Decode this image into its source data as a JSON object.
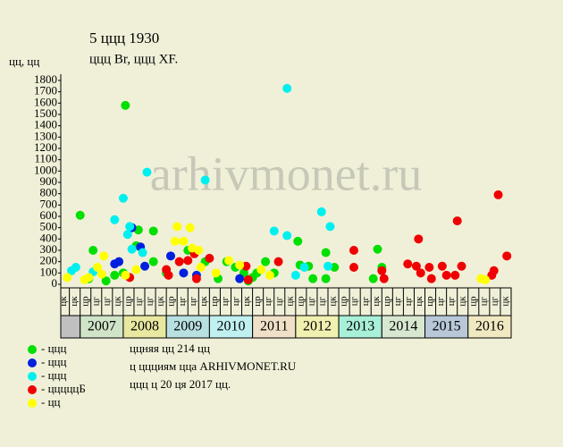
{
  "chart_data": {
    "type": "scatter",
    "title": "5 ццц 1930",
    "subtitle": "ццц Br, ццц XF.",
    "ylabel": "цц, цц",
    "watermark": "arhivmonet.ru",
    "notes": [
      "ццняя цц 214 цц",
      "ц ццциям цца ARHIVMONET.RU",
      "ццц ц 20 ця 2017 цц."
    ],
    "xlim": [
      2006.55,
      2017.0
    ],
    "ylim": [
      0,
      1800
    ],
    "yticks": [
      0,
      100,
      200,
      300,
      400,
      500,
      600,
      700,
      800,
      900,
      1000,
      1100,
      1200,
      1300,
      1400,
      1500,
      1600,
      1700,
      1800
    ],
    "xticks": [
      {
        "value": 2006.625,
        "label": "цк"
      },
      {
        "value": 2006.875,
        "label": "цк"
      },
      {
        "value": 2007.125,
        "label": "цр"
      },
      {
        "value": 2007.375,
        "label": "цг"
      },
      {
        "value": 2007.625,
        "label": "цг"
      },
      {
        "value": 2007.875,
        "label": "цк"
      },
      {
        "value": 2008.125,
        "label": "цр"
      },
      {
        "value": 2008.375,
        "label": "цг"
      },
      {
        "value": 2008.625,
        "label": "цг"
      },
      {
        "value": 2008.875,
        "label": "цк"
      },
      {
        "value": 2009.125,
        "label": "цр"
      },
      {
        "value": 2009.375,
        "label": "цг"
      },
      {
        "value": 2009.625,
        "label": "цг"
      },
      {
        "value": 2009.875,
        "label": "цк"
      },
      {
        "value": 2010.125,
        "label": "цр"
      },
      {
        "value": 2010.375,
        "label": "цг"
      },
      {
        "value": 2010.625,
        "label": "цг"
      },
      {
        "value": 2010.875,
        "label": "цк"
      },
      {
        "value": 2011.125,
        "label": "цр"
      },
      {
        "value": 2011.375,
        "label": "цг"
      },
      {
        "value": 2011.625,
        "label": "цг"
      },
      {
        "value": 2011.875,
        "label": "цк"
      },
      {
        "value": 2012.125,
        "label": "цр"
      },
      {
        "value": 2012.375,
        "label": "цг"
      },
      {
        "value": 2012.625,
        "label": "цг"
      },
      {
        "value": 2012.875,
        "label": "цк"
      },
      {
        "value": 2013.125,
        "label": "цр"
      },
      {
        "value": 2013.375,
        "label": "цг"
      },
      {
        "value": 2013.625,
        "label": "цг"
      },
      {
        "value": 2013.875,
        "label": "цк"
      },
      {
        "value": 2014.125,
        "label": "цр"
      },
      {
        "value": 2014.375,
        "label": "цг"
      },
      {
        "value": 2014.625,
        "label": "цг"
      },
      {
        "value": 2014.875,
        "label": "цк"
      },
      {
        "value": 2015.125,
        "label": "цр"
      },
      {
        "value": 2015.375,
        "label": "цг"
      },
      {
        "value": 2015.625,
        "label": "цг"
      },
      {
        "value": 2015.875,
        "label": "цк"
      },
      {
        "value": 2016.125,
        "label": "цр"
      },
      {
        "value": 2016.375,
        "label": "цг"
      },
      {
        "value": 2016.625,
        "label": "цг"
      },
      {
        "value": 2016.875,
        "label": "цк"
      }
    ],
    "year_bands": [
      {
        "label": "2007",
        "start": 2007,
        "end": 2008,
        "color": "#d0e4c8"
      },
      {
        "label": "2008",
        "start": 2008,
        "end": 2009,
        "color": "#e8e8a0"
      },
      {
        "label": "2009",
        "start": 2009,
        "end": 2010,
        "color": "#b8e0e0"
      },
      {
        "label": "2010",
        "start": 2010,
        "end": 2011,
        "color": "#c0f0f0"
      },
      {
        "label": "2011",
        "start": 2011,
        "end": 2012,
        "color": "#f0e0c8"
      },
      {
        "label": "2012",
        "start": 2012,
        "end": 2013,
        "color": "#f0f0b0"
      },
      {
        "label": "2013",
        "start": 2013,
        "end": 2014,
        "color": "#a8f0d8"
      },
      {
        "label": "2014",
        "start": 2014,
        "end": 2015,
        "color": "#d8e8d0"
      },
      {
        "label": "2015",
        "start": 2015,
        "end": 2016,
        "color": "#b8c8d8"
      },
      {
        "label": "2016",
        "start": 2016,
        "end": 2017,
        "color": "#f0e8c0"
      }
    ],
    "series": [
      {
        "name": "- ццц",
        "color": "#00e000",
        "x": [
          2007.0,
          2007.3,
          2008.05,
          2008.3,
          2008.35,
          2008.7,
          2008.7,
          2009.9,
          2010.4,
          2010.6,
          2010.8,
          2011.1,
          2011.3,
          2012.05,
          2012.1,
          2012.3,
          2012.4,
          2012.7,
          2012.7,
          2012.9,
          2013.8,
          2013.9,
          2014.0,
          2007.2,
          2007.6,
          2007.8,
          2008.0,
          2009.0,
          2009.5,
          2010.2,
          2010.9,
          2011.0,
          2011.5
        ],
        "values": [
          610,
          300,
          1580,
          340,
          480,
          470,
          200,
          200,
          200,
          150,
          100,
          100,
          200,
          380,
          170,
          160,
          50,
          280,
          50,
          150,
          50,
          310,
          150,
          50,
          30,
          80,
          100,
          100,
          300,
          50,
          30,
          60,
          100
        ]
      },
      {
        "name": "- ццц",
        "color": "#0020e0",
        "x": [
          2007.8,
          2007.9,
          2008.2,
          2008.4,
          2008.5,
          2009.1,
          2009.4,
          2010.7,
          2009.7
        ],
        "values": [
          180,
          200,
          500,
          330,
          160,
          250,
          100,
          50,
          80
        ]
      },
      {
        "name": "- ццц",
        "color": "#00f0f0",
        "x": [
          2006.8,
          2006.9,
          2007.3,
          2007.8,
          2008.0,
          2008.1,
          2008.15,
          2008.2,
          2008.45,
          2008.55,
          2009.9,
          2011.5,
          2011.8,
          2011.8,
          2012.0,
          2012.2,
          2012.6,
          2012.75,
          2012.8
        ],
        "values": [
          120,
          150,
          110,
          570,
          760,
          440,
          510,
          310,
          280,
          990,
          920,
          470,
          1730,
          430,
          80,
          150,
          640,
          160,
          510
        ]
      },
      {
        "name": "- цццццБ",
        "color": "#f00000",
        "x": [
          2008.15,
          2009.0,
          2009.05,
          2009.3,
          2009.5,
          2009.65,
          2009.7,
          2010.0,
          2010.85,
          2010.9,
          2011.6,
          2013.35,
          2013.35,
          2014.0,
          2014.05,
          2014.6,
          2014.8,
          2014.85,
          2014.9,
          2015.1,
          2015.15,
          2015.4,
          2015.5,
          2015.7,
          2015.75,
          2015.85,
          2016.55,
          2016.6,
          2016.7,
          2016.9
        ],
        "values": [
          60,
          130,
          80,
          200,
          210,
          270,
          50,
          230,
          160,
          40,
          200,
          300,
          150,
          120,
          50,
          180,
          160,
          400,
          100,
          150,
          50,
          160,
          80,
          80,
          560,
          160,
          80,
          120,
          790,
          250
        ]
      },
      {
        "name": "- цц",
        "color": "#ffff00",
        "x": [
          2006.7,
          2007.1,
          2007.2,
          2007.4,
          2007.5,
          2007.55,
          2008.05,
          2008.3,
          2009.2,
          2009.25,
          2009.4,
          2009.55,
          2009.6,
          2009.75,
          2009.8,
          2010.15,
          2010.45,
          2010.7,
          2011.2,
          2011.4,
          2016.3,
          2016.4
        ],
        "values": [
          60,
          40,
          60,
          150,
          90,
          250,
          80,
          130,
          380,
          510,
          380,
          500,
          320,
          300,
          150,
          100,
          210,
          170,
          130,
          80,
          50,
          40
        ]
      }
    ]
  }
}
